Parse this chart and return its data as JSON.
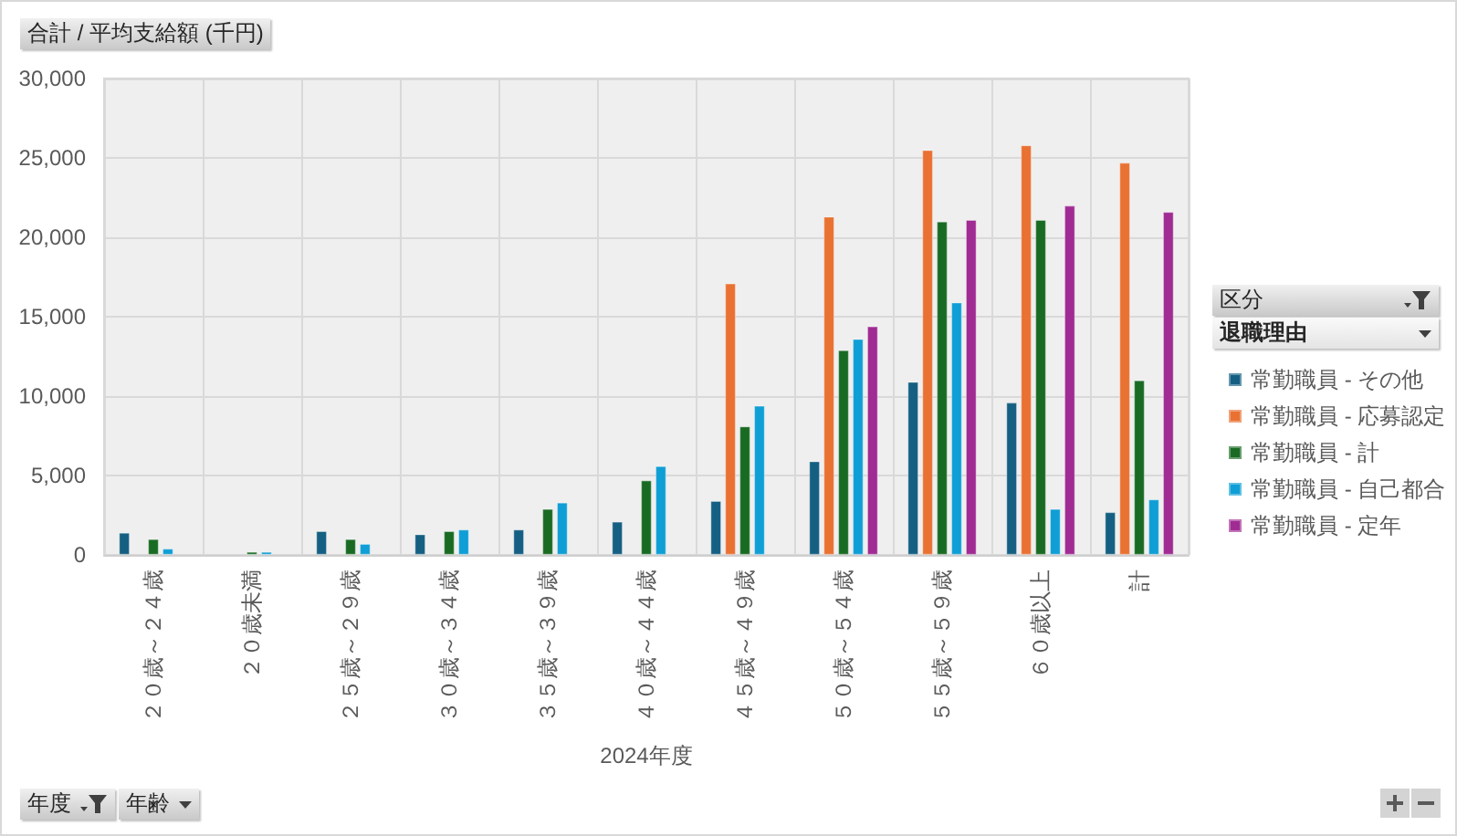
{
  "chart_data": {
    "type": "bar",
    "ylabel": "合計 / 平均支給額 (千円)",
    "xlabel": "2024年度",
    "legend_title": "区分",
    "annotations": [
      "退職理由",
      "年度",
      "年齢"
    ],
    "categories": [
      "２０歳～２４歳",
      "２０歳未満",
      "２５歳～２９歳",
      "３０歳～３４歳",
      "３５歳～３９歳",
      "４０歳～４４歳",
      "４５歳～４９歳",
      "５０歳～５４歳",
      "５５歳～５９歳",
      "６０歳以上",
      "計"
    ],
    "series": [
      {
        "name": "常勤職員 - その他",
        "color": "#156082",
        "values": [
          1400,
          null,
          1500,
          1300,
          1600,
          2100,
          3400,
          5900,
          10900,
          9600,
          2700
        ]
      },
      {
        "name": "常勤職員 - 応募認定",
        "color": "#e97132",
        "values": [
          null,
          null,
          null,
          null,
          null,
          null,
          17100,
          21300,
          25500,
          25800,
          24700
        ]
      },
      {
        "name": "常勤職員 - 計",
        "color": "#196b24",
        "values": [
          1000,
          200,
          1000,
          1500,
          2900,
          4700,
          8100,
          12900,
          21000,
          21100,
          11000
        ]
      },
      {
        "name": "常勤職員 - 自己都合",
        "color": "#0f9ed5",
        "values": [
          400,
          200,
          700,
          1600,
          3300,
          5600,
          9400,
          13600,
          15900,
          2900,
          3500
        ]
      },
      {
        "name": "常勤職員 - 定年",
        "color": "#a02b93",
        "values": [
          null,
          null,
          null,
          null,
          null,
          null,
          null,
          14400,
          21100,
          22000,
          21600
        ]
      }
    ],
    "ylim": [
      0,
      30000
    ],
    "yticks": [
      0,
      {
        "value": 5000,
        "label": "5,000"
      },
      {
        "value": 10000,
        "label": "10,000"
      },
      {
        "value": 15000,
        "label": "15,000"
      },
      {
        "value": 20000,
        "label": "20,000"
      },
      {
        "value": 25000,
        "label": "25,000"
      },
      {
        "value": 30000,
        "label": "30,000"
      }
    ],
    "grid": true,
    "legend": "right"
  }
}
